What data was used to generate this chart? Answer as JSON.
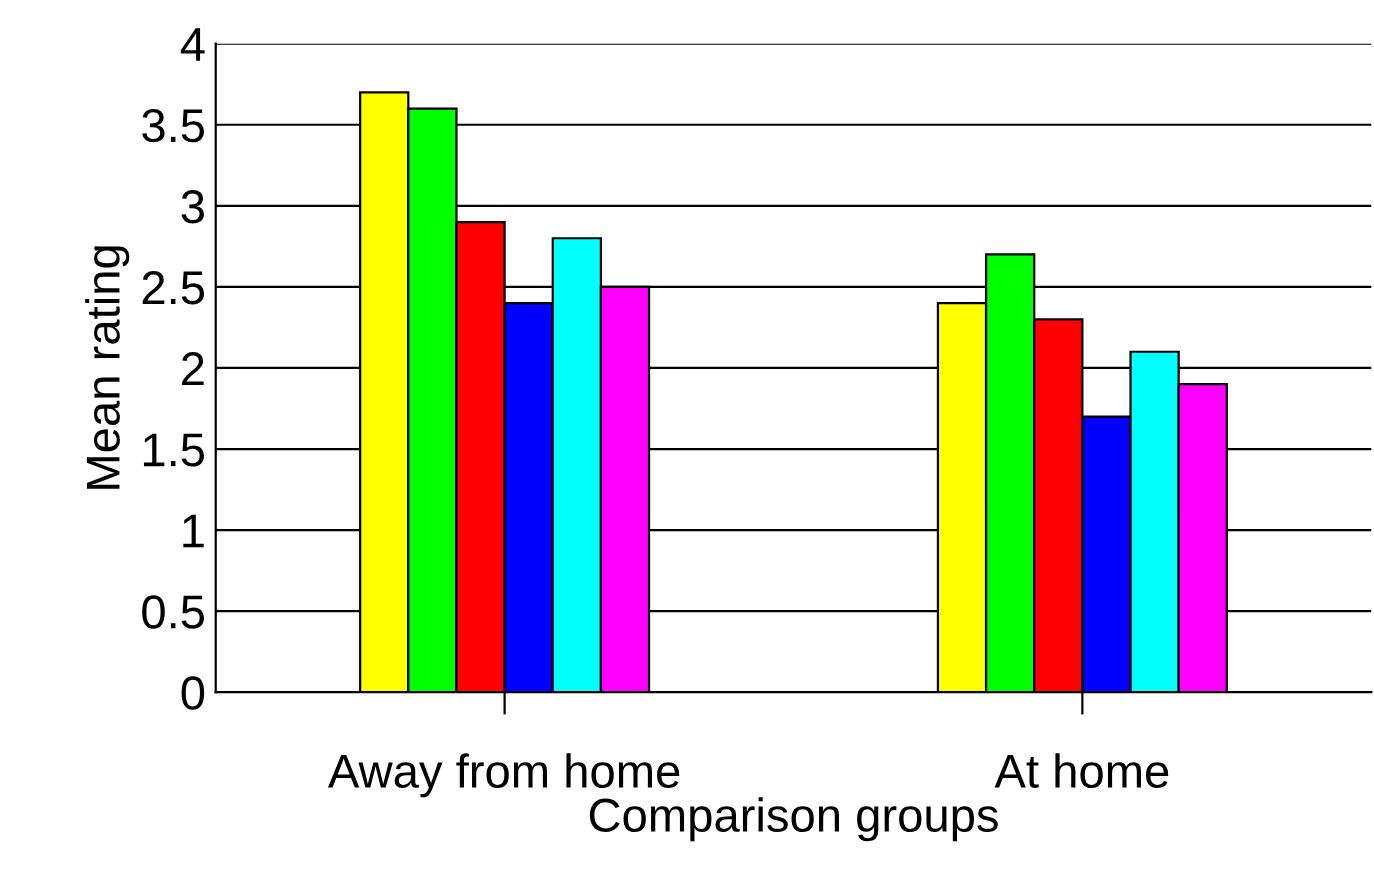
{
  "chart_data": {
    "type": "bar",
    "xlabel": "Comparison groups",
    "ylabel": "Mean rating",
    "categories": [
      "Away from home",
      "At home"
    ],
    "series": [
      {
        "color": "#ffff00",
        "values": [
          3.7,
          2.4
        ]
      },
      {
        "color": "#00ff00",
        "values": [
          3.6,
          2.7
        ]
      },
      {
        "color": "#ff0000",
        "values": [
          2.9,
          2.3
        ]
      },
      {
        "color": "#0000ff",
        "values": [
          2.4,
          1.7
        ]
      },
      {
        "color": "#00ffff",
        "values": [
          2.8,
          2.1
        ]
      },
      {
        "color": "#ff00ff",
        "values": [
          2.5,
          1.9
        ]
      }
    ],
    "ylim": [
      0,
      4
    ],
    "yticks": [
      0,
      0.5,
      1,
      1.5,
      2,
      2.5,
      3,
      3.5,
      4
    ],
    "grid": "y",
    "legend": false
  }
}
